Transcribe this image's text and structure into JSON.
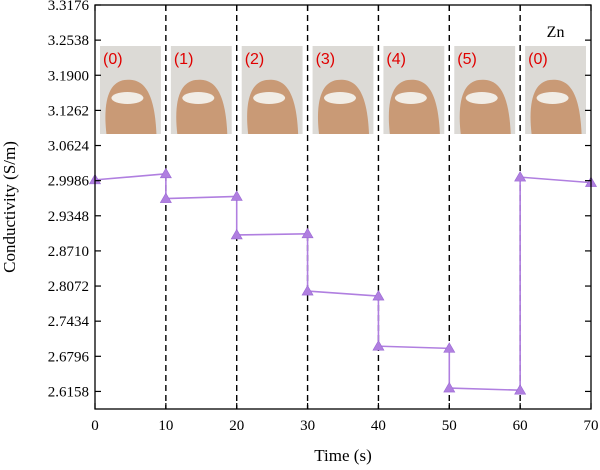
{
  "chart_data": {
    "type": "line",
    "title": "",
    "xlabel": "Time (s)",
    "ylabel": "Conductivity (S/m)",
    "xlim": [
      0,
      70
    ],
    "ylim": [
      2.5839,
      3.3176
    ],
    "x_ticks": [
      0,
      10,
      20,
      30,
      40,
      50,
      60,
      70
    ],
    "x_tick_labels": [
      "0",
      "10",
      "20",
      "30",
      "40",
      "50",
      "60",
      "70"
    ],
    "y_ticks": [
      2.6158,
      2.6796,
      2.7434,
      2.8072,
      2.871,
      2.9348,
      2.9986,
      3.0624,
      3.1262,
      3.19,
      3.2538,
      3.3176
    ],
    "y_tick_labels": [
      "2.6158",
      "2.6796",
      "2.7434",
      "2.8072",
      "2.8710",
      "2.9348",
      "2.9986",
      "3.0624",
      "3.1262",
      "3.1900",
      "3.2538",
      "3.3176"
    ],
    "grid": false,
    "vertical_dashed_lines_x": [
      10,
      20,
      30,
      40,
      50,
      60
    ],
    "series": [
      {
        "color": "#b07fe0",
        "marker": "triangle",
        "segments": [
          [
            [
              0,
              3.0
            ],
            [
              10,
              3.011
            ]
          ],
          [
            [
              10,
              2.966
            ],
            [
              20,
              2.97
            ]
          ],
          [
            [
              20,
              2.9
            ],
            [
              30,
              2.902
            ]
          ],
          [
            [
              30,
              2.798
            ],
            [
              40,
              2.789
            ]
          ],
          [
            [
              40,
              2.698
            ],
            [
              50,
              2.694
            ]
          ],
          [
            [
              50,
              2.622
            ],
            [
              60,
              2.618
            ]
          ],
          [
            [
              60,
              3.005
            ],
            [
              70,
              2.995
            ]
          ]
        ]
      }
    ],
    "annotations": {
      "metal": "Zn",
      "hand_labels": [
        {
          "text": "(0)",
          "x": 0
        },
        {
          "text": "(1)",
          "x": 10
        },
        {
          "text": "(2)",
          "x": 20
        },
        {
          "text": "(3)",
          "x": 30
        },
        {
          "text": "(4)",
          "x": 40
        },
        {
          "text": "(5)",
          "x": 50
        },
        {
          "text": "(0)",
          "x": 60
        }
      ]
    }
  }
}
